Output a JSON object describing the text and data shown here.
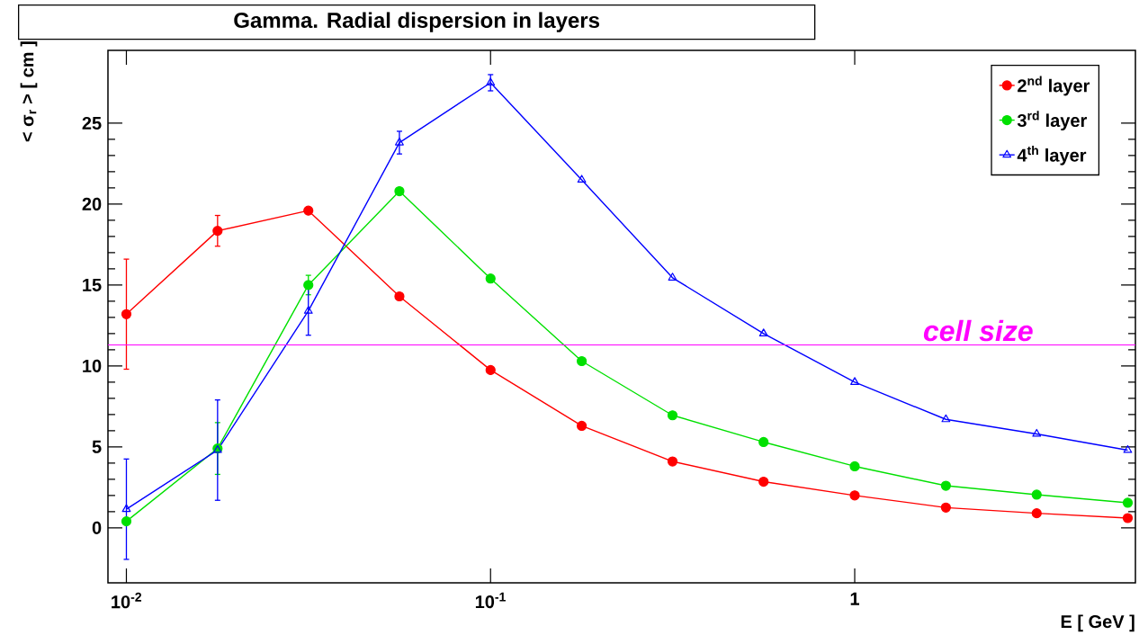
{
  "chart_data": {
    "type": "line",
    "title": "Gamma. Radial dispersion in layers",
    "xlabel": "E [ GeV ]",
    "ylabel": "< σ$_{r}$ > [ cm ]",
    "x": [
      0.01,
      0.0178,
      0.0316,
      0.0562,
      0.1,
      0.178,
      0.316,
      0.562,
      1,
      1.78,
      3.16,
      5.62
    ],
    "series": [
      {
        "name": "2$^{nd}$ layer",
        "color": "#ff0000",
        "marker": "circle",
        "values": [
          13.2,
          18.35,
          19.6,
          14.3,
          9.75,
          6.3,
          4.1,
          2.85,
          2.0,
          1.25,
          0.9,
          0.6
        ],
        "errors": [
          3.4,
          0.95,
          null,
          null,
          null,
          null,
          null,
          null,
          null,
          null,
          null,
          null
        ]
      },
      {
        "name": "3$^{rd}$ layer",
        "color": "#00e000",
        "marker": "circle",
        "values": [
          0.4,
          4.9,
          15.0,
          20.8,
          15.4,
          10.3,
          6.95,
          5.3,
          3.8,
          2.6,
          2.05,
          1.55
        ],
        "errors": [
          null,
          1.6,
          0.6,
          null,
          null,
          null,
          null,
          null,
          null,
          null,
          null,
          null
        ]
      },
      {
        "name": "4$^{th}$ layer",
        "color": "#0000ff",
        "marker": "triangle",
        "values": [
          1.15,
          4.8,
          13.4,
          23.8,
          27.5,
          21.5,
          15.45,
          12.0,
          9.0,
          6.7,
          5.8,
          4.8
        ],
        "errors": [
          3.1,
          3.1,
          1.5,
          0.7,
          0.5,
          null,
          null,
          null,
          null,
          null,
          null,
          null
        ]
      }
    ],
    "xlim": [
      0.0089,
      5.9
    ],
    "ylim": [
      -3.4,
      29.5
    ],
    "xticks": [
      {
        "value": 0.01,
        "label": "10$^{-2}$"
      },
      {
        "value": 0.1,
        "label": "10$^{-1}$"
      },
      1
    ],
    "yticks": [
      0,
      5,
      10,
      15,
      20,
      25
    ],
    "log": "x",
    "legend": "top right",
    "ref_lines": [
      {
        "axis": "y",
        "value": 11.3,
        "label": "cell size",
        "color": "#ff00ff"
      }
    ]
  }
}
